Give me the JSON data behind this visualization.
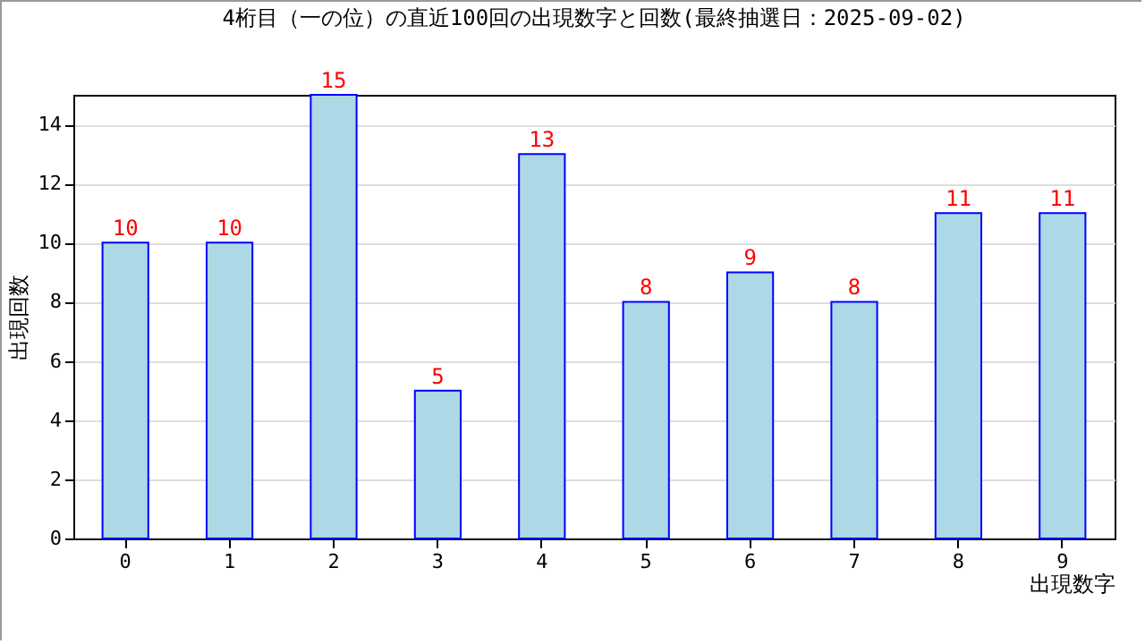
{
  "chart_data": {
    "type": "bar",
    "title": "4桁目（一の位）の直近100回の出現数字と回数(最終抽選日：2025-09-02)",
    "xlabel": "出現数字",
    "ylabel": "出現回数",
    "categories": [
      "0",
      "1",
      "2",
      "3",
      "4",
      "5",
      "6",
      "7",
      "8",
      "9"
    ],
    "values": [
      10,
      10,
      15,
      5,
      13,
      8,
      9,
      8,
      11,
      11
    ],
    "color": "#add8e6",
    "ylim": [
      0,
      15
    ],
    "yticks": [
      0,
      2,
      4,
      6,
      8,
      10,
      12,
      14
    ],
    "grid": "y",
    "data_labels": true
  }
}
